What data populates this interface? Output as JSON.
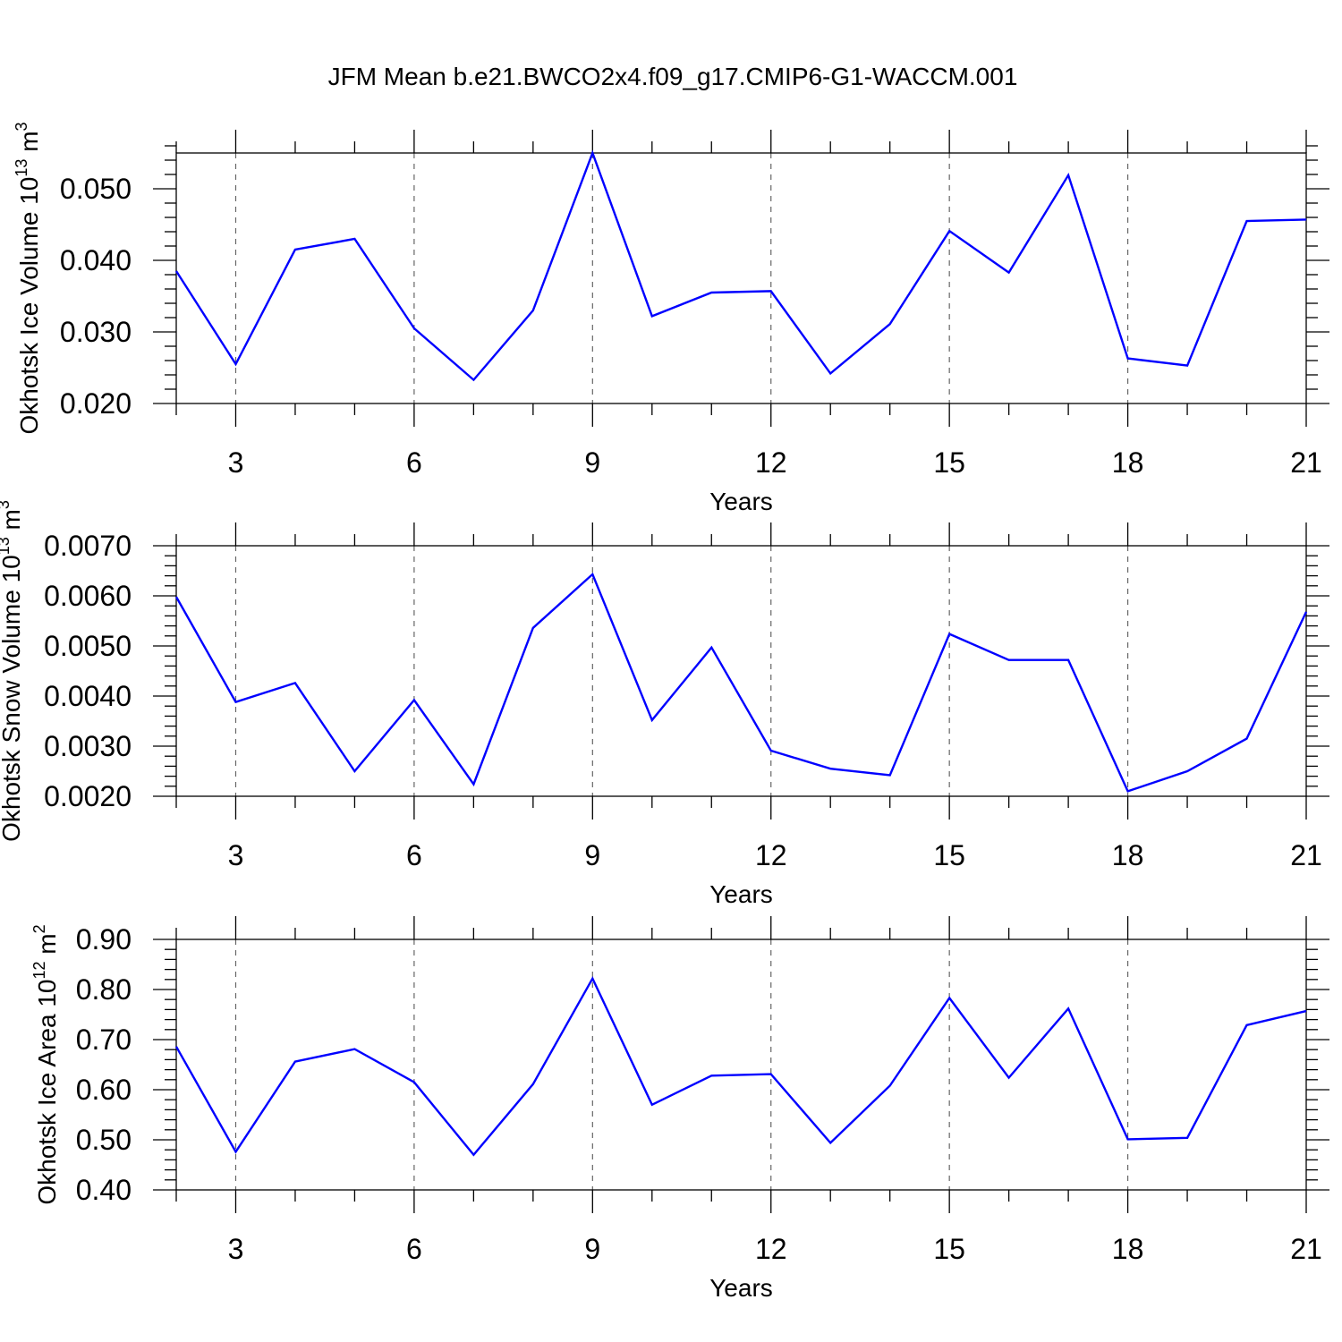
{
  "title": "JFM Mean b.e21.BWCO2x4.f09_g17.CMIP6-G1-WACCM.001",
  "chart_data": [
    {
      "type": "line",
      "x": [
        2,
        3,
        4,
        5,
        6,
        7,
        8,
        9,
        10,
        11,
        12,
        13,
        14,
        15,
        16,
        17,
        18,
        19,
        20,
        21
      ],
      "series": [
        {
          "values": [
            0.0385,
            0.0255,
            0.0415,
            0.043,
            0.0305,
            0.0233,
            0.033,
            0.055,
            0.0322,
            0.0355,
            0.0357,
            0.0242,
            0.0311,
            0.0441,
            0.0383,
            0.0519,
            0.0263,
            0.0253,
            0.0455,
            0.0457
          ],
          "color": "#0000ff"
        }
      ],
      "xlabel": "Years",
      "ylabel_main": "Okhotsk Ice Volume 10",
      "ylabel_sup": "13",
      "ylabel_unit": " m",
      "ylabel_unit_sup": "3",
      "xlim": [
        2,
        21
      ],
      "ylim": [
        0.02,
        0.055
      ],
      "xticks": [
        3,
        6,
        9,
        12,
        15,
        18,
        21
      ],
      "xtick_labels": [
        "3",
        "6",
        "9",
        "12",
        "15",
        "18",
        "21"
      ],
      "yticks": [
        0.02,
        0.03,
        0.04,
        0.05
      ],
      "ytick_labels": [
        "0.020",
        "0.030",
        "0.040",
        "0.050"
      ],
      "yminor_step": 0.002,
      "grid": "vertical-dashed"
    },
    {
      "type": "line",
      "x": [
        2,
        3,
        4,
        5,
        6,
        7,
        8,
        9,
        10,
        11,
        12,
        13,
        14,
        15,
        16,
        17,
        18,
        19,
        20,
        21
      ],
      "series": [
        {
          "values": [
            0.00598,
            0.00388,
            0.00426,
            0.0025,
            0.00392,
            0.00224,
            0.00536,
            0.00643,
            0.00352,
            0.00497,
            0.00291,
            0.00255,
            0.00242,
            0.00524,
            0.00472,
            0.00472,
            0.0021,
            0.0025,
            0.00315,
            0.00568
          ],
          "color": "#0000ff"
        }
      ],
      "xlabel": "Years",
      "ylabel_main": "Okhotsk Snow Volume 10",
      "ylabel_sup": "13",
      "ylabel_unit": " m",
      "ylabel_unit_sup": "3",
      "xlim": [
        2,
        21
      ],
      "ylim": [
        0.002,
        0.007
      ],
      "xticks": [
        3,
        6,
        9,
        12,
        15,
        18,
        21
      ],
      "xtick_labels": [
        "3",
        "6",
        "9",
        "12",
        "15",
        "18",
        "21"
      ],
      "yticks": [
        0.002,
        0.003,
        0.004,
        0.005,
        0.006,
        0.007
      ],
      "ytick_labels": [
        "0.0020",
        "0.0030",
        "0.0040",
        "0.0050",
        "0.0060",
        "0.0070"
      ],
      "yminor_step": 0.0002,
      "grid": "vertical-dashed"
    },
    {
      "type": "line",
      "x": [
        2,
        3,
        4,
        5,
        6,
        7,
        8,
        9,
        10,
        11,
        12,
        13,
        14,
        15,
        16,
        17,
        18,
        19,
        20,
        21
      ],
      "series": [
        {
          "values": [
            0.686,
            0.476,
            0.656,
            0.681,
            0.615,
            0.47,
            0.611,
            0.822,
            0.57,
            0.628,
            0.631,
            0.494,
            0.608,
            0.783,
            0.624,
            0.762,
            0.501,
            0.504,
            0.729,
            0.757
          ],
          "color": "#0000ff"
        }
      ],
      "xlabel": "Years",
      "ylabel_main": "Okhotsk Ice Area 10",
      "ylabel_sup": "12",
      "ylabel_unit": " m",
      "ylabel_unit_sup": "2",
      "xlim": [
        2,
        21
      ],
      "ylim": [
        0.4,
        0.9
      ],
      "xticks": [
        3,
        6,
        9,
        12,
        15,
        18,
        21
      ],
      "xtick_labels": [
        "3",
        "6",
        "9",
        "12",
        "15",
        "18",
        "21"
      ],
      "yticks": [
        0.4,
        0.5,
        0.6,
        0.7,
        0.8,
        0.9
      ],
      "ytick_labels": [
        "0.40",
        "0.50",
        "0.60",
        "0.70",
        "0.80",
        "0.90"
      ],
      "yminor_step": 0.02,
      "grid": "vertical-dashed"
    }
  ]
}
